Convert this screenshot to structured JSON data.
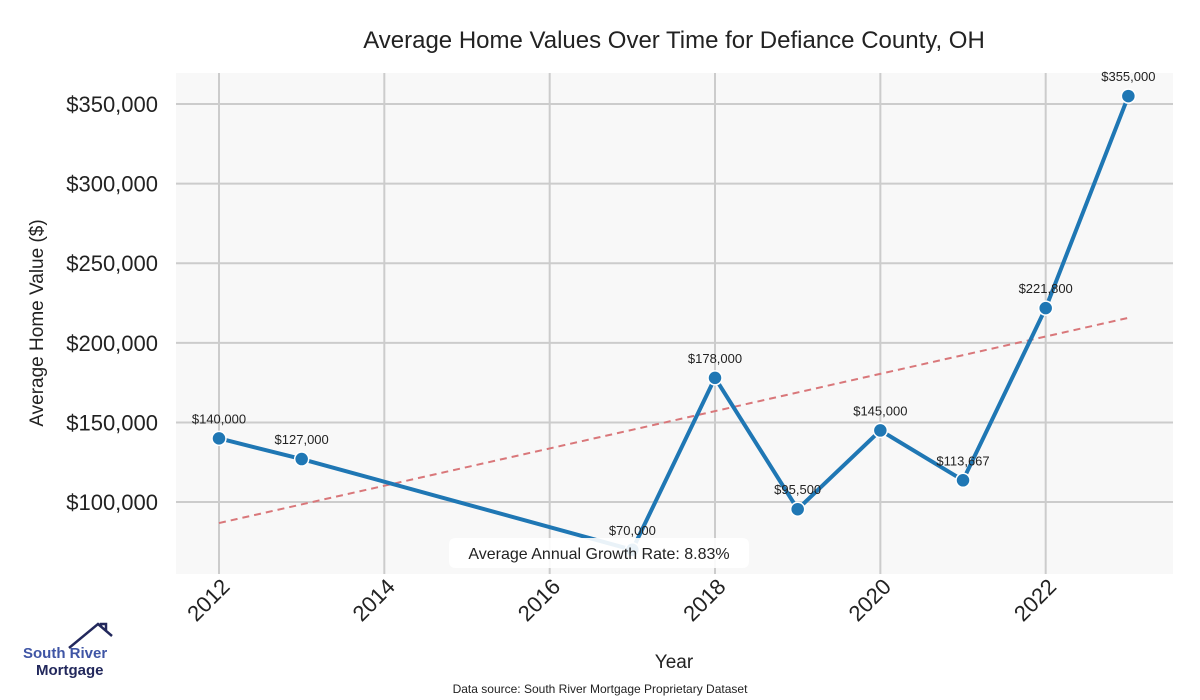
{
  "chart_data": {
    "type": "line",
    "title": "Average Home Values Over Time for Defiance County, OH",
    "xlabel": "Year",
    "ylabel": "Average Home Value ($)",
    "xlim": [
      2011.48,
      2023.54
    ],
    "ylim": [
      54800,
      369500
    ],
    "grid": true,
    "x_ticks": [
      2012,
      2014,
      2016,
      2018,
      2020,
      2022
    ],
    "y_ticks": [
      100000,
      150000,
      200000,
      250000,
      300000,
      350000
    ],
    "y_tick_labels": [
      "$100,000",
      "$150,000",
      "$200,000",
      "$250,000",
      "$300,000",
      "$350,000"
    ],
    "series": [
      {
        "name": "Average Home Value",
        "color": "#1f77b4",
        "x": [
          2012,
          2013,
          2017,
          2018,
          2019,
          2020,
          2021,
          2022,
          2023
        ],
        "y": [
          140000,
          127000,
          70000,
          178000,
          95500,
          145000,
          113667,
          221800,
          355000
        ],
        "labels": [
          "$140,000",
          "$127,000",
          "$70,000",
          "$178,000",
          "$95,500",
          "$145,000",
          "$113,667",
          "$221,800",
          "$355,000"
        ]
      }
    ],
    "trend_line": {
      "color": "#d9777a",
      "x": [
        2012,
        2023
      ],
      "y": [
        86800,
        215700
      ]
    },
    "annotation": "Average Annual Growth Rate: 8.83%",
    "source": "Data source: South River Mortgage Proprietary Dataset"
  },
  "logo": {
    "line1": "South River",
    "line2": "Mortgage"
  }
}
